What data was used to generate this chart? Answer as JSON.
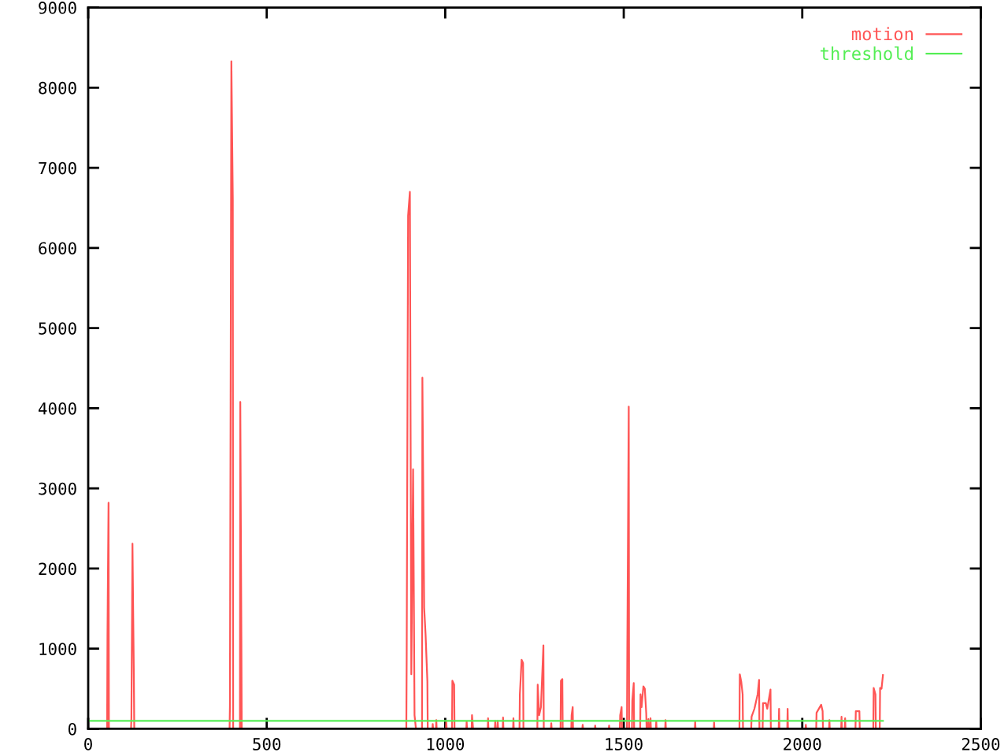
{
  "chart_data": {
    "type": "line",
    "xlim": [
      0,
      2500
    ],
    "xticks": [
      0,
      500,
      1000,
      1500,
      2000,
      2500
    ],
    "ylim": [
      0,
      9000
    ],
    "yticks": [
      0,
      1000,
      2000,
      3000,
      4000,
      5000,
      6000,
      7000,
      8000,
      9000
    ],
    "grid": false,
    "legend": "top right",
    "series": [
      {
        "name": "motion",
        "color": "#ff5555",
        "x": [
          0,
          53,
          54,
          57,
          58,
          120,
          121,
          124,
          128,
          129,
          396,
          397,
          401,
          405,
          406,
          425,
          426,
          429,
          430,
          891,
          892,
          896,
          901,
          905,
          910,
          914,
          917,
          918,
          935,
          936,
          941,
          945,
          950,
          951,
          964,
          965,
          966,
          974,
          975,
          976,
          1002,
          1003,
          1004,
          1019,
          1020,
          1025,
          1026,
          1059,
          1060,
          1061,
          1074,
          1075,
          1078,
          1119,
          1120,
          1121,
          1139,
          1140,
          1141,
          1146,
          1147,
          1148,
          1161,
          1162,
          1163,
          1190,
          1191,
          1192,
          1208,
          1209,
          1214,
          1218,
          1219,
          1258,
          1259,
          1263,
          1268,
          1275,
          1276,
          1296,
          1297,
          1298,
          1323,
          1324,
          1328,
          1329,
          1353,
          1354,
          1357,
          1358,
          1384,
          1385,
          1386,
          1419,
          1420,
          1421,
          1458,
          1459,
          1460,
          1489,
          1490,
          1494,
          1495,
          1509,
          1510,
          1514,
          1515,
          1523,
          1524,
          1528,
          1529,
          1546,
          1547,
          1550,
          1555,
          1559,
          1563,
          1564,
          1568,
          1569,
          1570,
          1574,
          1575,
          1576,
          1590,
          1591,
          1592,
          1616,
          1617,
          1618,
          1699,
          1700,
          1701,
          1752,
          1753,
          1754,
          1824,
          1825,
          1829,
          1833,
          1834,
          1857,
          1858,
          1866,
          1875,
          1879,
          1880,
          1889,
          1890,
          1898,
          1902,
          1911,
          1912,
          1934,
          1935,
          1936,
          1958,
          1959,
          1960,
          2009,
          2010,
          2011,
          2039,
          2040,
          2053,
          2057,
          2058,
          2075,
          2076,
          2077,
          2109,
          2110,
          2111,
          2119,
          2120,
          2121,
          2149,
          2150,
          2160,
          2161,
          2199,
          2200,
          2205,
          2206,
          2217,
          2218,
          2222,
          2226
        ],
        "values": [
          0,
          0,
          1170,
          2820,
          0,
          0,
          130,
          2310,
          600,
          0,
          0,
          290,
          8330,
          6600,
          0,
          0,
          4080,
          1150,
          0,
          0,
          850,
          6400,
          6700,
          680,
          3240,
          170,
          40,
          0,
          0,
          4380,
          1510,
          1170,
          590,
          0,
          0,
          60,
          0,
          0,
          110,
          0,
          0,
          90,
          0,
          0,
          600,
          550,
          0,
          0,
          90,
          0,
          0,
          170,
          0,
          0,
          130,
          0,
          0,
          100,
          0,
          0,
          100,
          0,
          0,
          140,
          0,
          0,
          130,
          0,
          0,
          430,
          860,
          820,
          0,
          0,
          550,
          170,
          270,
          1040,
          0,
          0,
          70,
          0,
          0,
          600,
          620,
          0,
          0,
          170,
          270,
          0,
          0,
          50,
          0,
          0,
          40,
          0,
          0,
          40,
          0,
          0,
          170,
          270,
          0,
          0,
          1000,
          4020,
          0,
          0,
          350,
          570,
          0,
          0,
          430,
          270,
          530,
          500,
          190,
          0,
          0,
          120,
          0,
          0,
          130,
          0,
          0,
          90,
          0,
          0,
          110,
          0,
          0,
          90,
          0,
          0,
          80,
          0,
          0,
          680,
          590,
          430,
          0,
          0,
          150,
          250,
          430,
          610,
          0,
          0,
          320,
          320,
          250,
          490,
          0,
          0,
          250,
          0,
          0,
          250,
          0,
          0,
          50,
          0,
          0,
          200,
          300,
          220,
          0,
          0,
          110,
          0,
          0,
          150,
          0,
          0,
          130,
          0,
          0,
          220,
          220,
          0,
          0,
          510,
          430,
          0,
          0,
          510,
          500,
          670
        ]
      },
      {
        "name": "threshold",
        "color": "#55ee55",
        "x": [
          0,
          2226
        ],
        "values": [
          100,
          100
        ]
      }
    ]
  }
}
